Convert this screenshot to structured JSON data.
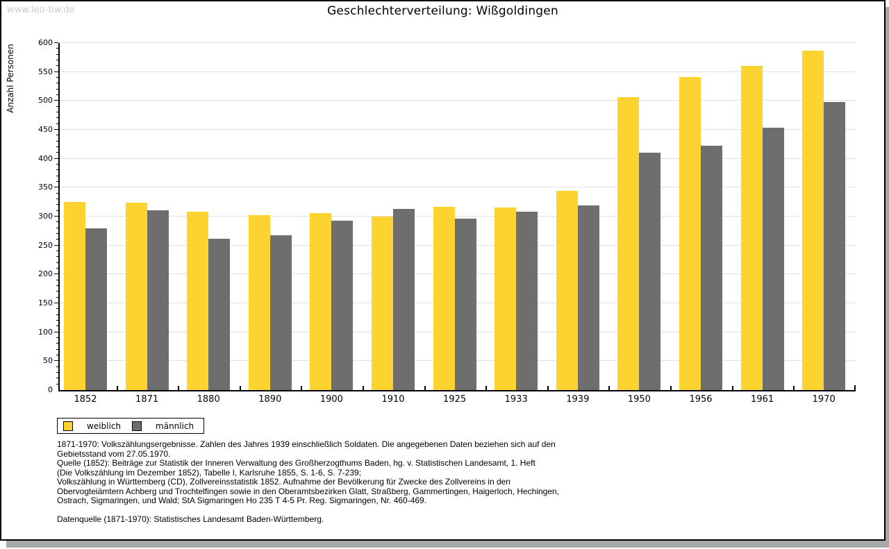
{
  "watermark": "www.leo-bw.de",
  "chart_data": {
    "type": "bar",
    "title": "Geschlechterverteilung: Wißgoldingen",
    "xlabel": "",
    "ylabel": "Anzahl Personen",
    "ylim": [
      0,
      600
    ],
    "ytick_step": 50,
    "yminor_step": 10,
    "grid": true,
    "legend_position": "bottom-left",
    "categories": [
      "1852",
      "1871",
      "1880",
      "1890",
      "1900",
      "1910",
      "1925",
      "1933",
      "1939",
      "1950",
      "1956",
      "1961",
      "1970"
    ],
    "series": [
      {
        "name": "weiblich",
        "color": "#fdd32f",
        "values": [
          325,
          324,
          308,
          302,
          306,
          300,
          317,
          316,
          345,
          507,
          541,
          560,
          587
        ]
      },
      {
        "name": "männlich",
        "color": "#6e6e6e",
        "values": [
          280,
          311,
          262,
          268,
          293,
          313,
          296,
          308,
          319,
          411,
          423,
          454,
          498
        ]
      }
    ]
  },
  "footer": {
    "lines": [
      "1871-1970: Volkszählungsergebnisse. Zahlen des Jahres 1939 einschließlich Soldaten. Die angegebenen Daten beziehen sich auf den",
      "Gebietsstand vom 27.05.1970.",
      "Quelle (1852): Beiträge zur Statistik der Inneren Verwaltung des Großherzogthums Baden, hg. v. Statistischen Landesamt, 1. Heft",
      "(Die Volkszählung im Dezember 1852), Tabelle I, Karlsruhe 1855, S. 1-6, S. 7-239;",
      "Volkszählung in Württemberg (CD), Zollvereinsstatistik 1852. Aufnahme der Bevölkerung für Zwecke des Zollvereins in den",
      "Obervogteiämtern Achberg und Trochtelfingen sowie in den Oberamtsbezirken Glatt, Straßberg, Gammertingen, Haigerloch, Hechingen,",
      "Ostrach, Sigmaringen, und Wald; StA Sigmaringen Ho 235 T 4-5 Pr. Reg. Sigmaringen, Nr. 460-469.",
      "",
      "Datenquelle (1871-1970): Statistisches Landesamt Baden-Württemberg."
    ]
  },
  "colors": {
    "female_bar": "#fdd32f",
    "male_bar": "#6e6e6e",
    "gridline": "#e0e0e0",
    "watermark": "#cccccc",
    "shadow": "#a8a8a8",
    "axis": "#000000"
  }
}
